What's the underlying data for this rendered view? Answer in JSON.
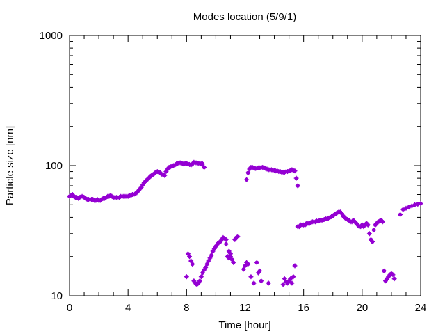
{
  "chart_data": {
    "type": "scatter",
    "title": "Modes location (5/9/1)",
    "xlabel": "Time [hour]",
    "ylabel": "Particle size [nm]",
    "xlim": [
      0,
      24
    ],
    "ylim": [
      10,
      1000
    ],
    "yscale": "log",
    "x_ticks": [
      0,
      4,
      8,
      12,
      16,
      20,
      24
    ],
    "x_tick_labels": [
      "0",
      "4",
      "8",
      "12",
      "16",
      "20",
      "24"
    ],
    "y_ticks": [
      10,
      100,
      1000
    ],
    "y_tick_labels": [
      "10",
      "100",
      "1000"
    ],
    "grid": false,
    "marker_color": "#9400d3",
    "series": [
      {
        "values": [
          [
            0.0,
            58
          ],
          [
            0.1,
            59
          ],
          [
            0.2,
            60
          ],
          [
            0.3,
            58
          ],
          [
            0.4,
            57
          ],
          [
            0.5,
            57
          ],
          [
            0.6,
            56
          ],
          [
            0.7,
            57
          ],
          [
            0.8,
            58
          ],
          [
            0.9,
            58
          ],
          [
            1.0,
            57
          ],
          [
            1.1,
            56
          ],
          [
            1.2,
            55
          ],
          [
            1.3,
            55
          ],
          [
            1.4,
            55
          ],
          [
            1.5,
            55
          ],
          [
            1.6,
            55
          ],
          [
            1.7,
            54
          ],
          [
            1.8,
            54
          ],
          [
            1.9,
            55
          ],
          [
            2.0,
            54
          ],
          [
            2.1,
            54
          ],
          [
            2.2,
            55
          ],
          [
            2.3,
            56
          ],
          [
            2.4,
            56
          ],
          [
            2.5,
            57
          ],
          [
            2.6,
            58
          ],
          [
            2.7,
            58
          ],
          [
            2.8,
            59
          ],
          [
            2.9,
            58
          ],
          [
            3.0,
            57
          ],
          [
            3.1,
            57
          ],
          [
            3.2,
            57
          ],
          [
            3.3,
            57
          ],
          [
            3.4,
            57
          ],
          [
            3.5,
            58
          ],
          [
            3.6,
            58
          ],
          [
            3.7,
            58
          ],
          [
            3.8,
            58
          ],
          [
            3.9,
            58
          ],
          [
            4.0,
            58
          ],
          [
            4.1,
            59
          ],
          [
            4.2,
            59
          ],
          [
            4.3,
            60
          ],
          [
            4.4,
            60
          ],
          [
            4.5,
            61
          ],
          [
            4.6,
            62
          ],
          [
            4.7,
            64
          ],
          [
            4.8,
            66
          ],
          [
            4.9,
            68
          ],
          [
            5.0,
            71
          ],
          [
            5.1,
            74
          ],
          [
            5.2,
            76
          ],
          [
            5.3,
            78
          ],
          [
            5.4,
            80
          ],
          [
            5.5,
            82
          ],
          [
            5.6,
            84
          ],
          [
            5.7,
            85
          ],
          [
            5.8,
            87
          ],
          [
            5.9,
            89
          ],
          [
            6.0,
            90
          ],
          [
            6.1,
            89
          ],
          [
            6.2,
            88
          ],
          [
            6.3,
            86
          ],
          [
            6.4,
            85
          ],
          [
            6.5,
            84
          ],
          [
            6.6,
            90
          ],
          [
            6.7,
            94
          ],
          [
            6.8,
            97
          ],
          [
            6.9,
            98
          ],
          [
            7.0,
            99
          ],
          [
            7.1,
            100
          ],
          [
            7.2,
            101
          ],
          [
            7.3,
            103
          ],
          [
            7.4,
            104
          ],
          [
            7.5,
            105
          ],
          [
            7.6,
            105
          ],
          [
            7.7,
            104
          ],
          [
            7.8,
            103
          ],
          [
            7.9,
            104
          ],
          [
            8.0,
            104
          ],
          [
            8.1,
            103
          ],
          [
            8.2,
            102
          ],
          [
            8.3,
            101
          ],
          [
            8.4,
            103
          ],
          [
            8.5,
            106
          ],
          [
            8.6,
            105
          ],
          [
            8.7,
            105
          ],
          [
            8.8,
            104
          ],
          [
            8.9,
            104
          ],
          [
            9.0,
            103
          ],
          [
            9.1,
            103
          ],
          [
            9.2,
            97
          ]
        ]
      },
      {
        "values": [
          [
            8.0,
            14
          ],
          [
            8.1,
            21
          ],
          [
            8.2,
            20
          ],
          [
            8.3,
            18.5
          ],
          [
            8.4,
            17.5
          ],
          [
            8.5,
            13
          ],
          [
            8.6,
            12.5
          ],
          [
            8.7,
            12.2
          ],
          [
            8.8,
            12.5
          ],
          [
            8.9,
            13
          ],
          [
            9.0,
            14
          ],
          [
            9.1,
            15
          ],
          [
            9.2,
            15.8
          ],
          [
            9.3,
            16.5
          ],
          [
            9.4,
            17.5
          ],
          [
            9.5,
            18.5
          ],
          [
            9.6,
            19.5
          ],
          [
            9.7,
            20.5
          ],
          [
            9.8,
            22
          ],
          [
            9.9,
            23
          ],
          [
            10.0,
            24
          ],
          [
            10.1,
            25
          ],
          [
            10.2,
            25.5
          ],
          [
            10.3,
            26
          ],
          [
            10.4,
            27
          ],
          [
            10.5,
            28
          ],
          [
            10.6,
            27.5
          ],
          [
            10.7,
            27
          ],
          [
            10.8,
            20
          ],
          [
            10.9,
            19.5
          ],
          [
            11.0,
            20
          ],
          [
            11.1,
            19
          ],
          [
            11.2,
            18
          ],
          [
            11.3,
            27
          ],
          [
            11.4,
            28
          ],
          [
            11.5,
            28.5
          ],
          [
            10.7,
            25
          ],
          [
            10.9,
            22
          ],
          [
            11.0,
            21
          ],
          [
            11.9,
            16
          ],
          [
            12.0,
            17
          ],
          [
            12.1,
            18
          ],
          [
            12.2,
            17.5
          ],
          [
            12.4,
            14
          ],
          [
            12.6,
            12.5
          ],
          [
            12.8,
            18
          ],
          [
            12.9,
            15
          ],
          [
            13.0,
            15.5
          ],
          [
            13.1,
            13
          ],
          [
            13.6,
            12.5
          ],
          [
            14.6,
            12.2
          ],
          [
            14.7,
            13.5
          ],
          [
            14.8,
            12.8
          ],
          [
            14.9,
            12.5
          ],
          [
            15.0,
            13
          ],
          [
            15.1,
            13.5
          ],
          [
            15.2,
            12.5
          ],
          [
            15.3,
            14
          ],
          [
            15.4,
            17
          ]
        ]
      },
      {
        "values": [
          [
            12.1,
            78
          ],
          [
            12.2,
            88
          ],
          [
            12.3,
            94
          ],
          [
            12.4,
            97
          ],
          [
            12.5,
            97
          ],
          [
            12.6,
            96
          ],
          [
            12.7,
            95
          ],
          [
            12.8,
            95
          ],
          [
            12.9,
            96
          ],
          [
            13.0,
            96
          ],
          [
            13.1,
            97
          ],
          [
            13.2,
            97
          ],
          [
            13.3,
            96
          ],
          [
            13.4,
            95
          ],
          [
            13.5,
            94
          ],
          [
            13.6,
            93
          ],
          [
            13.7,
            93
          ],
          [
            13.8,
            93
          ],
          [
            13.9,
            92
          ],
          [
            14.0,
            92
          ],
          [
            14.1,
            91
          ],
          [
            14.2,
            91
          ],
          [
            14.3,
            90
          ],
          [
            14.4,
            90
          ],
          [
            14.5,
            89
          ],
          [
            14.6,
            89
          ],
          [
            14.7,
            89
          ],
          [
            14.8,
            90
          ],
          [
            14.9,
            90
          ],
          [
            15.0,
            91
          ],
          [
            15.1,
            92
          ],
          [
            15.2,
            93
          ],
          [
            15.3,
            92
          ],
          [
            15.4,
            91
          ],
          [
            15.5,
            80
          ],
          [
            15.6,
            70
          ]
        ]
      },
      {
        "values": [
          [
            15.6,
            34
          ],
          [
            15.7,
            34
          ],
          [
            15.8,
            35
          ],
          [
            15.9,
            35
          ],
          [
            16.0,
            35
          ],
          [
            16.1,
            35
          ],
          [
            16.2,
            36
          ],
          [
            16.3,
            36
          ],
          [
            16.4,
            36
          ],
          [
            16.5,
            36.5
          ],
          [
            16.6,
            37
          ],
          [
            16.7,
            37
          ],
          [
            16.8,
            37
          ],
          [
            16.9,
            37.5
          ],
          [
            17.0,
            37.5
          ],
          [
            17.1,
            38
          ],
          [
            17.2,
            38
          ],
          [
            17.3,
            38
          ],
          [
            17.4,
            38.5
          ],
          [
            17.5,
            39
          ],
          [
            17.6,
            39
          ],
          [
            17.7,
            39.5
          ],
          [
            17.8,
            40
          ],
          [
            17.9,
            40.5
          ],
          [
            18.0,
            41
          ],
          [
            18.1,
            42
          ],
          [
            18.2,
            42.5
          ],
          [
            18.3,
            43.5
          ],
          [
            18.4,
            44
          ],
          [
            18.5,
            44
          ],
          [
            18.6,
            43
          ],
          [
            18.7,
            41
          ],
          [
            18.8,
            40
          ],
          [
            18.9,
            39
          ],
          [
            19.0,
            38.5
          ],
          [
            19.1,
            38
          ],
          [
            19.2,
            37
          ],
          [
            19.3,
            37
          ],
          [
            19.4,
            38
          ],
          [
            19.5,
            37
          ],
          [
            19.6,
            36
          ],
          [
            19.7,
            35
          ],
          [
            19.8,
            34
          ],
          [
            19.9,
            34
          ],
          [
            20.0,
            35
          ],
          [
            20.1,
            34
          ],
          [
            20.2,
            35
          ],
          [
            20.3,
            36
          ],
          [
            20.4,
            35
          ],
          [
            20.5,
            30
          ],
          [
            20.6,
            27
          ],
          [
            20.7,
            26
          ],
          [
            20.8,
            32
          ],
          [
            20.9,
            35
          ],
          [
            21.0,
            36
          ],
          [
            21.1,
            37
          ],
          [
            21.2,
            37.5
          ],
          [
            21.3,
            38
          ],
          [
            21.4,
            37
          ],
          [
            21.5,
            15.5
          ],
          [
            21.6,
            13
          ],
          [
            21.7,
            13.5
          ],
          [
            21.8,
            14
          ],
          [
            21.9,
            14.5
          ],
          [
            22.0,
            14.8
          ],
          [
            22.1,
            14.5
          ],
          [
            22.2,
            13.5
          ],
          [
            22.6,
            42
          ],
          [
            22.8,
            46
          ],
          [
            23.0,
            47
          ],
          [
            23.2,
            48
          ],
          [
            23.4,
            49
          ],
          [
            23.6,
            50
          ],
          [
            23.8,
            50.5
          ],
          [
            24.0,
            51
          ]
        ]
      }
    ]
  }
}
